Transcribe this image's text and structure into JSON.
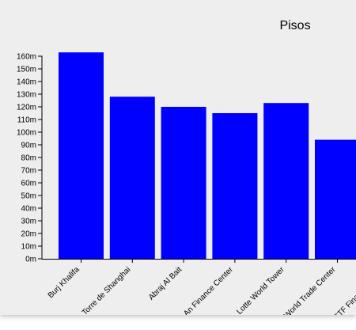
{
  "chart_data": {
    "type": "bar",
    "title": "Pisos",
    "xlabel": "",
    "ylabel": "",
    "ylim": [
      0,
      160
    ],
    "y_ticks": [
      "0m",
      "10m",
      "20m",
      "30m",
      "40m",
      "50m",
      "60m",
      "70m",
      "80m",
      "90m",
      "100m",
      "110m",
      "120m",
      "130m",
      "140m",
      "150m",
      "160m"
    ],
    "y_tick_values": [
      0,
      10,
      20,
      30,
      40,
      50,
      60,
      70,
      80,
      90,
      100,
      110,
      120,
      130,
      140,
      150,
      160
    ],
    "grid": false,
    "categories": [
      "Burj Khalifa",
      "Torre de Shanghai",
      "Abraj Al Bait",
      "Ping An Finance Center",
      "Lotte World Tower",
      "One World Trade Center",
      "CTF Finance Centre"
    ],
    "values": [
      163,
      128,
      120,
      115,
      123,
      94,
      0
    ],
    "bar_color": "#0000ff"
  }
}
